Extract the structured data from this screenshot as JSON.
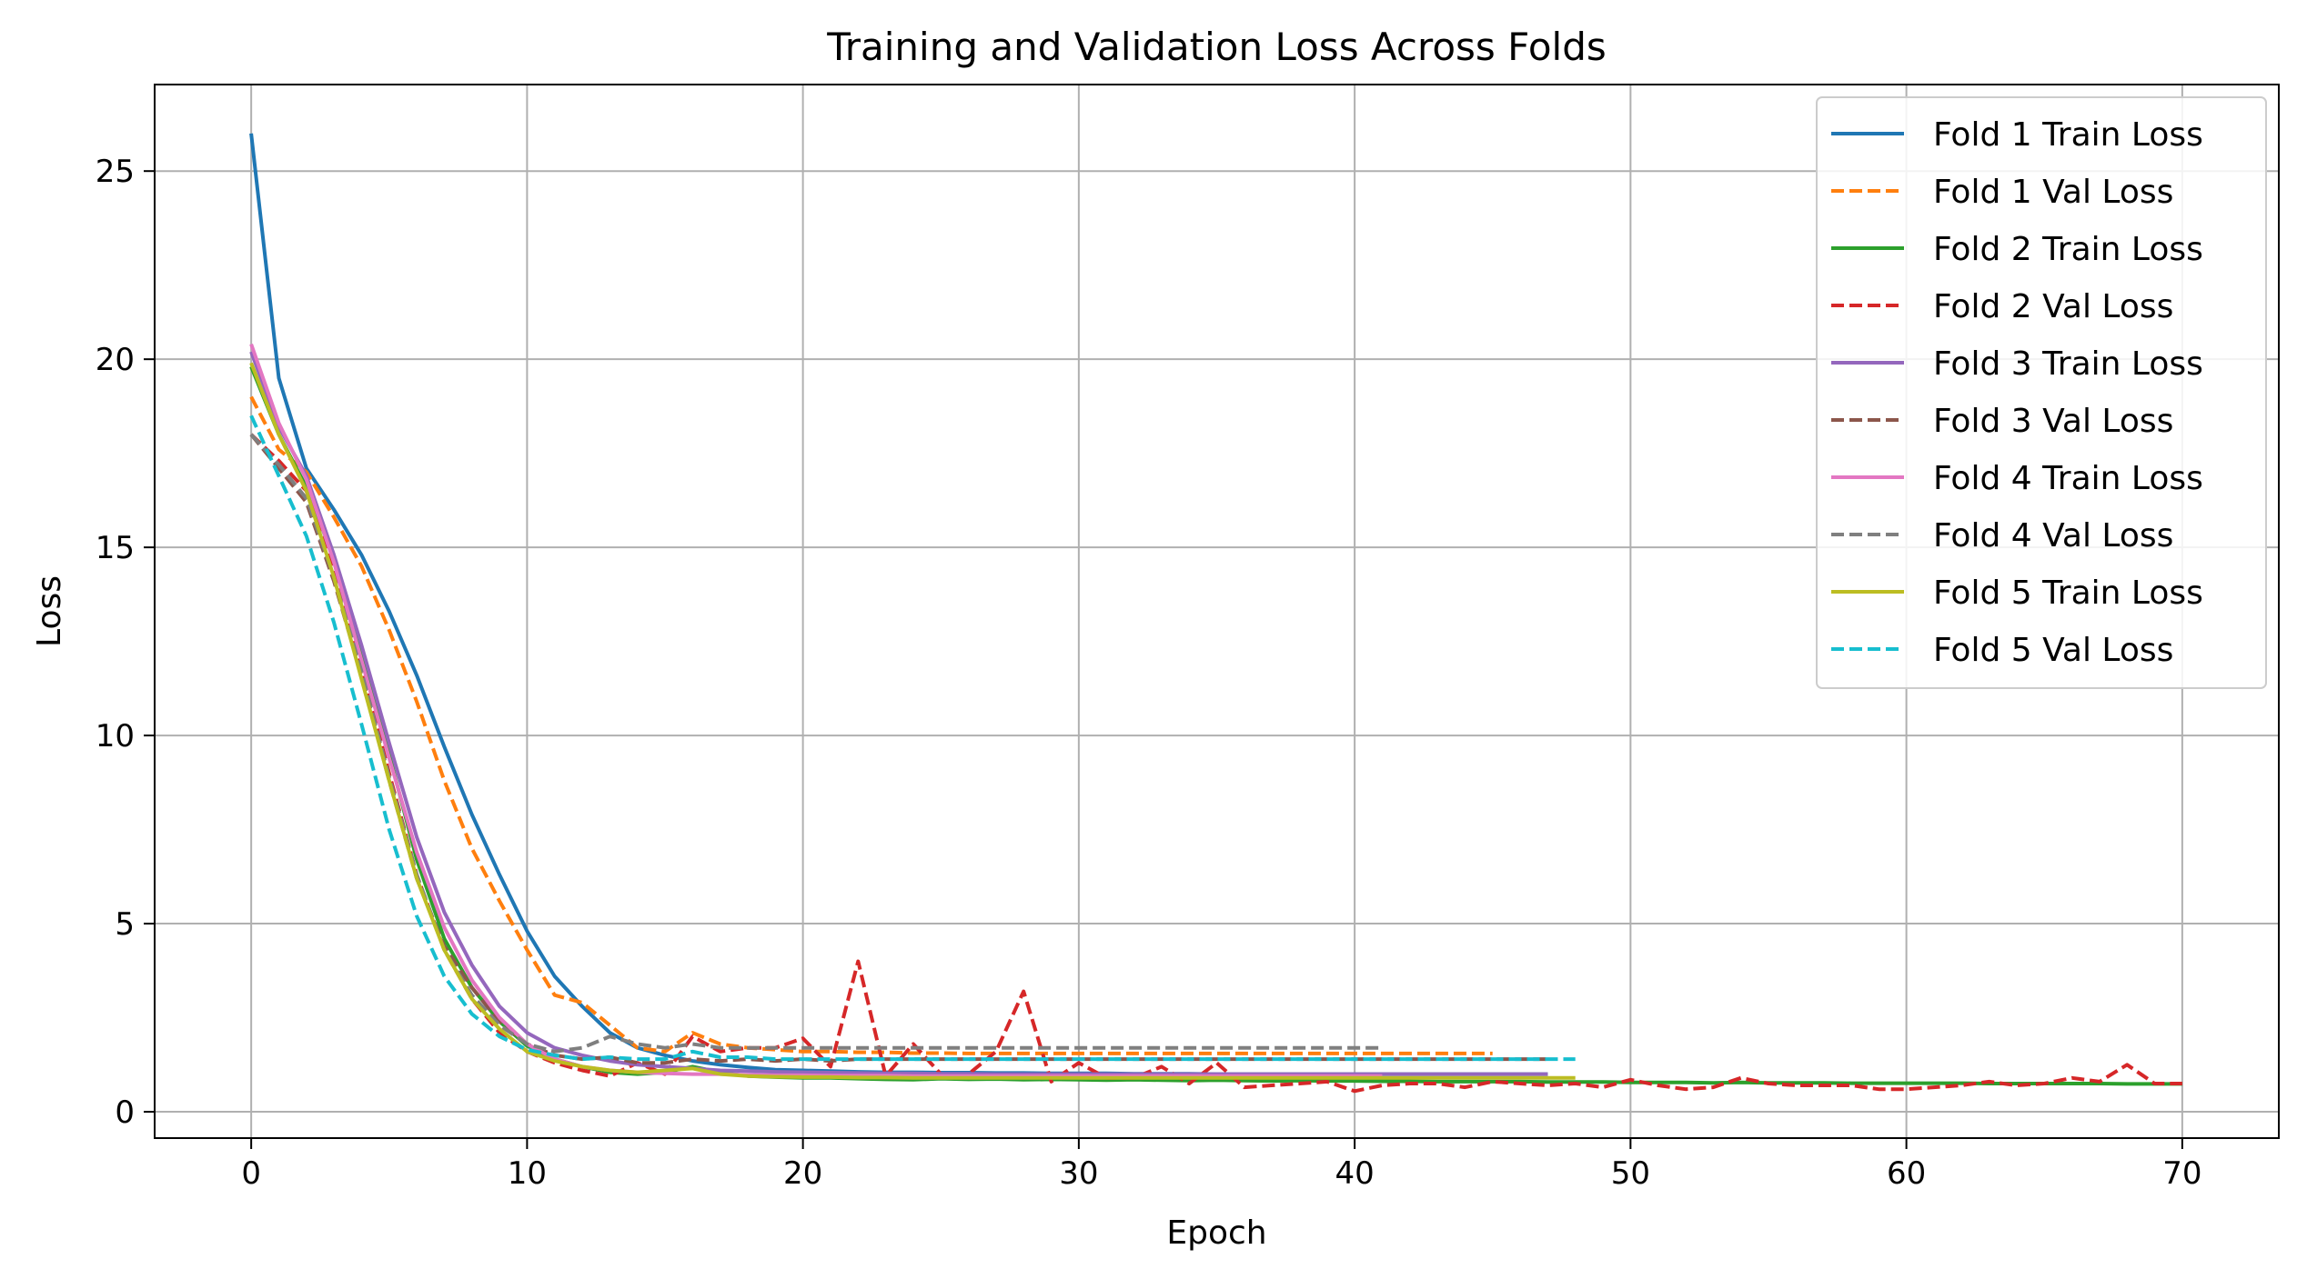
{
  "chart_data": {
    "type": "line",
    "title": "Training and Validation Loss Across Folds",
    "xlabel": "Epoch",
    "ylabel": "Loss",
    "xlim": [
      -3.5,
      73.5
    ],
    "ylim": [
      -0.7,
      27.3
    ],
    "xticks": [
      0,
      10,
      20,
      30,
      40,
      50,
      60,
      70
    ],
    "yticks": [
      0,
      5,
      10,
      15,
      20,
      25
    ],
    "grid": true,
    "legend_position": "top-right",
    "series": [
      {
        "name": "Fold 1 Train Loss",
        "color": "#1f77b4",
        "dash": false,
        "y": [
          26.0,
          19.5,
          17.1,
          16.0,
          14.8,
          13.3,
          11.6,
          9.7,
          7.9,
          6.3,
          4.8,
          3.6,
          2.8,
          2.1,
          1.7,
          1.5,
          1.35,
          1.25,
          1.18,
          1.12,
          1.1,
          1.08,
          1.06,
          1.05,
          1.05,
          1.04,
          1.04,
          1.03,
          1.03,
          1.02,
          1.02,
          1.02,
          1.01,
          1.01,
          1.01,
          1.0,
          1.0,
          1.0,
          1.0,
          1.0,
          1.0,
          1.0,
          1.0,
          1.0,
          1.0,
          1.0,
          1.0,
          1.0
        ]
      },
      {
        "name": "Fold 1 Val Loss",
        "color": "#ff7f0e",
        "dash": true,
        "y": [
          19.0,
          17.6,
          17.0,
          15.8,
          14.5,
          12.8,
          10.9,
          8.8,
          7.0,
          5.6,
          4.3,
          3.1,
          2.9,
          2.3,
          1.7,
          1.6,
          2.1,
          1.8,
          1.7,
          1.65,
          1.6,
          1.6,
          1.58,
          1.58,
          1.56,
          1.56,
          1.55,
          1.55,
          1.55,
          1.55,
          1.55,
          1.55,
          1.55,
          1.55,
          1.55,
          1.55,
          1.55,
          1.55,
          1.55,
          1.55,
          1.55,
          1.55,
          1.55,
          1.55,
          1.55,
          1.55
        ]
      },
      {
        "name": "Fold 2 Train Loss",
        "color": "#2ca02c",
        "dash": false,
        "y": [
          19.8,
          18.0,
          16.6,
          14.7,
          12.2,
          9.5,
          6.7,
          4.6,
          3.3,
          2.4,
          1.75,
          1.4,
          1.2,
          1.05,
          1.0,
          1.05,
          1.2,
          1.05,
          0.95,
          0.92,
          0.9,
          0.9,
          0.88,
          0.86,
          0.85,
          0.88,
          0.86,
          0.87,
          0.85,
          0.86,
          0.85,
          0.84,
          0.85,
          0.84,
          0.83,
          0.84,
          0.83,
          0.82,
          0.83,
          0.82,
          0.82,
          0.81,
          0.81,
          0.8,
          0.8,
          0.8,
          0.8,
          0.79,
          0.79,
          0.79,
          0.78,
          0.78,
          0.78,
          0.77,
          0.78,
          0.77,
          0.77,
          0.77,
          0.76,
          0.76,
          0.76,
          0.76,
          0.76,
          0.75,
          0.75,
          0.75,
          0.75,
          0.75,
          0.74,
          0.74,
          0.74
        ]
      },
      {
        "name": "Fold 2 Val Loss",
        "color": "#d62728",
        "dash": true,
        "y": [
          18.0,
          17.3,
          16.5,
          14.4,
          11.8,
          9.0,
          6.3,
          4.3,
          3.0,
          2.1,
          1.6,
          1.3,
          1.1,
          0.95,
          1.3,
          1.0,
          2.0,
          1.6,
          1.7,
          1.7,
          1.95,
          1.2,
          4.0,
          0.95,
          1.8,
          1.0,
          1.0,
          1.6,
          3.2,
          0.8,
          1.3,
          0.9,
          0.9,
          1.2,
          0.75,
          1.3,
          0.65,
          0.7,
          0.75,
          0.8,
          0.55,
          0.7,
          0.75,
          0.75,
          0.65,
          0.8,
          0.75,
          0.7,
          0.75,
          0.65,
          0.85,
          0.7,
          0.6,
          0.65,
          0.9,
          0.75,
          0.7,
          0.7,
          0.7,
          0.6,
          0.6,
          0.65,
          0.7,
          0.8,
          0.7,
          0.75,
          0.9,
          0.8,
          1.25,
          0.75,
          0.75
        ]
      },
      {
        "name": "Fold 3 Train Loss",
        "color": "#9467bd",
        "dash": false,
        "y": [
          20.2,
          18.2,
          16.9,
          14.8,
          12.4,
          9.8,
          7.3,
          5.3,
          3.9,
          2.8,
          2.1,
          1.7,
          1.5,
          1.35,
          1.25,
          1.2,
          1.15,
          1.1,
          1.08,
          1.06,
          1.05,
          1.04,
          1.03,
          1.02,
          1.02,
          1.01,
          1.01,
          1.0,
          1.0,
          1.0,
          1.0,
          1.0,
          1.0,
          1.0,
          1.0,
          1.0,
          1.0,
          1.0,
          1.0,
          1.0,
          1.0,
          1.0,
          1.0,
          1.0,
          1.0,
          1.0,
          1.0,
          1.0
        ]
      },
      {
        "name": "Fold 3 Val Loss",
        "color": "#8c564b",
        "dash": true,
        "y": [
          18.0,
          17.1,
          16.2,
          14.1,
          11.6,
          8.8,
          6.2,
          4.4,
          3.3,
          2.4,
          1.8,
          1.5,
          1.4,
          1.45,
          1.3,
          1.3,
          1.4,
          1.35,
          1.4,
          1.35,
          1.4,
          1.35,
          1.4,
          1.4,
          1.4,
          1.4,
          1.4,
          1.4,
          1.4,
          1.4,
          1.4,
          1.4,
          1.4,
          1.4,
          1.4,
          1.4,
          1.4,
          1.4,
          1.4,
          1.4,
          1.4,
          1.4,
          1.4,
          1.4,
          1.4,
          1.4,
          1.4,
          1.4
        ]
      },
      {
        "name": "Fold 4 Train Loss",
        "color": "#e377c2",
        "dash": false,
        "y": [
          20.4,
          18.3,
          16.8,
          14.6,
          12.0,
          9.4,
          6.9,
          4.9,
          3.5,
          2.5,
          1.8,
          1.4,
          1.2,
          1.1,
          1.05,
          1.02,
          1.0,
          1.0,
          0.98,
          0.97,
          0.97,
          0.96,
          0.96,
          0.96,
          0.95,
          0.95,
          0.95,
          0.95,
          0.95,
          0.95,
          0.95,
          0.95,
          0.95,
          0.95,
          0.95,
          0.95,
          0.95,
          0.95,
          0.95,
          0.95,
          0.95,
          0.95
        ]
      },
      {
        "name": "Fold 4 Val Loss",
        "color": "#7f7f7f",
        "dash": true,
        "y": [
          18.0,
          17.2,
          16.3,
          14.2,
          11.7,
          8.9,
          6.3,
          4.3,
          3.1,
          2.3,
          1.8,
          1.6,
          1.7,
          2.0,
          1.8,
          1.7,
          1.8,
          1.7,
          1.7,
          1.7,
          1.7,
          1.7,
          1.7,
          1.7,
          1.7,
          1.7,
          1.7,
          1.7,
          1.7,
          1.7,
          1.7,
          1.7,
          1.7,
          1.7,
          1.7,
          1.7,
          1.7,
          1.7,
          1.7,
          1.7,
          1.7,
          1.7
        ]
      },
      {
        "name": "Fold 5 Train Loss",
        "color": "#bcbd22",
        "dash": false,
        "y": [
          19.9,
          18.0,
          16.5,
          14.2,
          11.5,
          8.8,
          6.2,
          4.3,
          3.0,
          2.2,
          1.6,
          1.35,
          1.2,
          1.1,
          1.05,
          1.1,
          1.15,
          1.0,
          0.95,
          0.93,
          0.92,
          0.92,
          0.91,
          0.91,
          0.9,
          0.9,
          0.9,
          0.9,
          0.9,
          0.9,
          0.9,
          0.9,
          0.9,
          0.9,
          0.9,
          0.9,
          0.9,
          0.9,
          0.9,
          0.9,
          0.9,
          0.9,
          0.9,
          0.9,
          0.9,
          0.9,
          0.9,
          0.9,
          0.9
        ]
      },
      {
        "name": "Fold 5 Val Loss",
        "color": "#17becf",
        "dash": true,
        "y": [
          18.5,
          16.9,
          15.3,
          13.0,
          10.3,
          7.5,
          5.2,
          3.6,
          2.6,
          2.0,
          1.65,
          1.5,
          1.4,
          1.45,
          1.4,
          1.4,
          1.6,
          1.45,
          1.45,
          1.4,
          1.4,
          1.4,
          1.4,
          1.4,
          1.4,
          1.4,
          1.4,
          1.4,
          1.4,
          1.4,
          1.4,
          1.4,
          1.4,
          1.4,
          1.4,
          1.4,
          1.4,
          1.4,
          1.4,
          1.4,
          1.4,
          1.4,
          1.4,
          1.4,
          1.4,
          1.4,
          1.4,
          1.4,
          1.4
        ]
      }
    ]
  }
}
